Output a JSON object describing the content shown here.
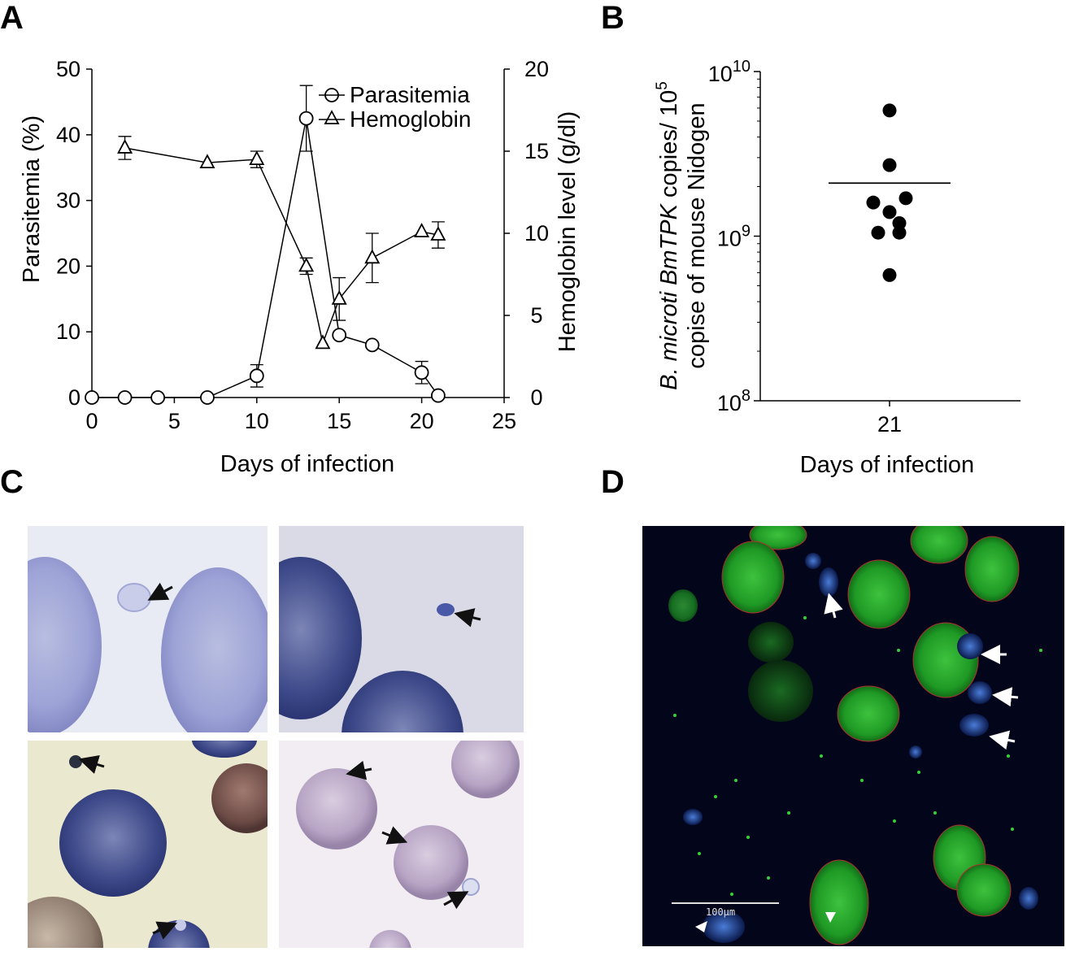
{
  "panels": {
    "A": "A",
    "B": "B",
    "C": "C",
    "D": "D"
  },
  "chart_data": [
    {
      "type": "line",
      "panel": "A",
      "xlabel": "Days of infection",
      "ylabel_left": "Parasitemia (%)",
      "ylabel_right": "Hemoglobin level (g/dl)",
      "xlim": [
        0,
        25
      ],
      "ylim_left": [
        0,
        50
      ],
      "ylim_right": [
        0,
        20
      ],
      "x_ticks": [
        0,
        5,
        10,
        15,
        20,
        25
      ],
      "y_left_ticks": [
        0,
        10,
        20,
        30,
        40,
        50
      ],
      "y_right_ticks": [
        0,
        5,
        10,
        15,
        20
      ],
      "legend_position": "top-right",
      "series": [
        {
          "name": "Parasitemia",
          "axis": "left",
          "marker": "circle",
          "x": [
            0,
            2,
            4,
            7,
            10,
            13,
            15,
            17,
            20,
            21
          ],
          "values": [
            0,
            0,
            0,
            0,
            3.3,
            42.5,
            9.5,
            8.0,
            3.8,
            0.3
          ],
          "error": [
            0,
            0,
            0,
            0,
            1.7,
            5.0,
            0,
            0,
            1.7,
            0
          ]
        },
        {
          "name": "Hemoglobin",
          "axis": "right",
          "marker": "triangle",
          "x": [
            2,
            7,
            10,
            13,
            14,
            15,
            17,
            20,
            21
          ],
          "values": [
            15.2,
            14.3,
            14.5,
            8.0,
            3.3,
            6.0,
            8.5,
            10.1,
            9.9
          ],
          "error": [
            0.7,
            0,
            0.5,
            0.5,
            0,
            1.3,
            1.5,
            0,
            0.8
          ]
        }
      ]
    },
    {
      "type": "scatter",
      "panel": "B",
      "xlabel": "Days of infection",
      "ylabel_line1": "B. microti BmTPK copies/ 10",
      "ylabel_line1_sup": "5",
      "ylabel_line2": "copise of mouse Nidogen",
      "y_scale": "log",
      "ylim": [
        100000000,
        10000000000
      ],
      "y_ticks": [
        {
          "base": "10",
          "exp": "10",
          "value": 10000000000
        },
        {
          "base": "10",
          "exp": "9",
          "value": 1000000000
        },
        {
          "base": "10",
          "exp": "8",
          "value": 100000000
        }
      ],
      "categories": [
        "21"
      ],
      "points": [
        5800000000,
        2700000000,
        1700000000,
        1600000000,
        1400000000,
        1200000000,
        1050000000,
        1050000000,
        580000000
      ],
      "mean": 2100000000
    }
  ],
  "images": {
    "C": {
      "description_name": "blood-smear-micrographs",
      "tiles": 4
    },
    "D": {
      "description_name": "fluorescence-micrograph",
      "scale_bar_label": "100µm"
    }
  }
}
